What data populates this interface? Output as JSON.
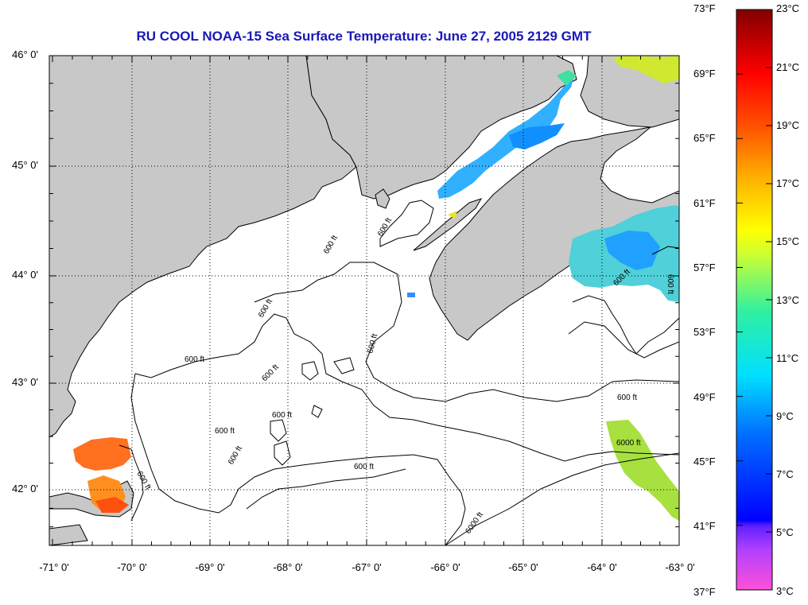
{
  "title": "RU COOL  NOAA-15  Sea Surface Temperature:  June 27, 2005 2129 GMT",
  "colors": {
    "land": "#c8c8c8",
    "water": "#ffffff",
    "coast": "#000000",
    "title": "#1818b8",
    "grid": "#000000"
  },
  "map": {
    "lon_range": [
      -71.0,
      -63.0
    ],
    "lat_range": [
      41.5,
      46.1
    ],
    "lat_labels": [
      "46° 0'",
      "45° 0'",
      "44° 0'",
      "43° 0'",
      "42° 0'"
    ],
    "lon_labels": [
      "-71° 0'",
      "-70° 0'",
      "-69° 0'",
      "-68° 0'",
      "-67° 0'",
      "-66° 0'",
      "-65° 0'",
      "-64° 0'",
      "-63° 0'"
    ],
    "grid": "dotted",
    "contour_labels": [
      "600 ft",
      "600 ft",
      "600 ft",
      "600 ft",
      "600 ft",
      "600 ft",
      "600 ft",
      "600 ft",
      "600 ft",
      "600 ft",
      "600 ft",
      "600 ft",
      "600 ft",
      "600 ft",
      "6000 ft",
      "6000 ft"
    ]
  },
  "colorbar": {
    "fahrenheit_labels": [
      "73°F",
      "69°F",
      "65°F",
      "61°F",
      "57°F",
      "53°F",
      "49°F",
      "45°F",
      "41°F",
      "37°F"
    ],
    "celsius_labels": [
      "23°C",
      "21°C",
      "19°C",
      "17°C",
      "15°C",
      "13°C",
      "11°C",
      "9°C",
      "7°C",
      "5°C",
      "3°C"
    ],
    "range_celsius": [
      3,
      23
    ]
  }
}
